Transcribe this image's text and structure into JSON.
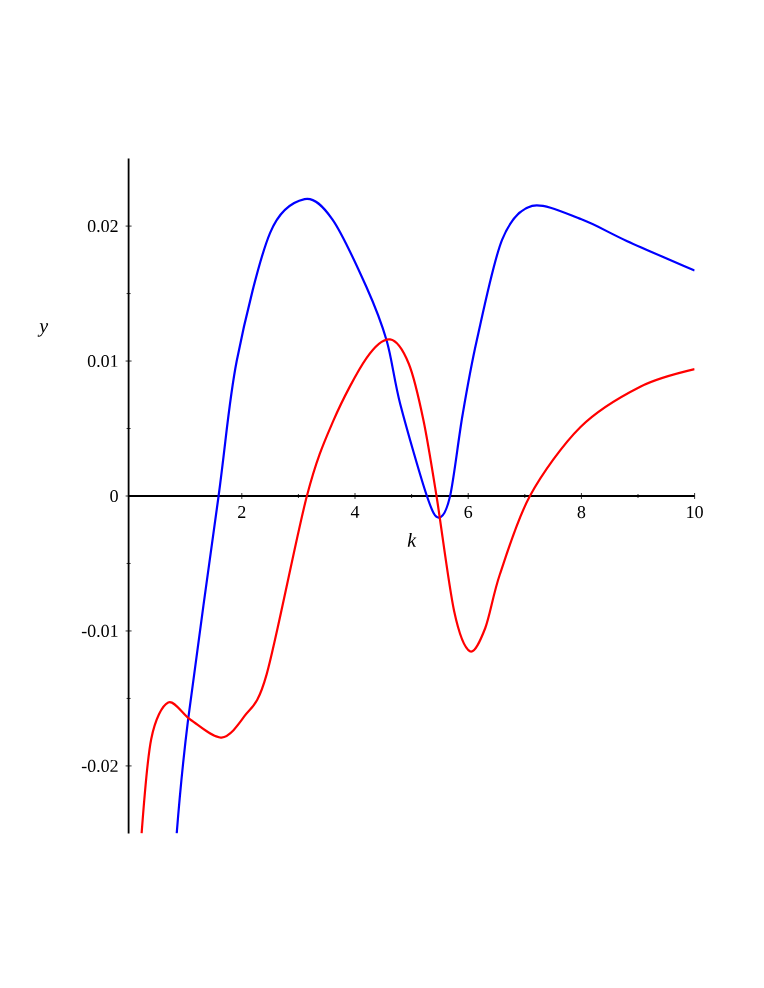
{
  "chart_data": {
    "type": "line",
    "xlabel": "k",
    "ylabel": "y",
    "xlim": [
      0,
      10
    ],
    "ylim": [
      -0.025,
      0.025
    ],
    "xticks": [
      2,
      4,
      6,
      8,
      10
    ],
    "yticks": [
      -0.02,
      -0.01,
      0,
      0.01,
      0.02
    ],
    "grid": false,
    "marker": "none",
    "line_style": "solid",
    "series": [
      {
        "color": "#0000ff",
        "x": [
          0.85,
          1.05,
          1.59,
          1.91,
          2.5,
          3.11,
          3.6,
          4.2,
          4.56,
          4.8,
          5.27,
          5.48,
          5.68,
          5.9,
          6.15,
          6.6,
          7.13,
          8.0,
          8.8,
          10
        ],
        "values": [
          -0.025,
          -0.0166,
          0,
          0.01,
          0.0195,
          0.022,
          0.0205,
          0.0155,
          0.0115,
          0.0068,
          0,
          -0.0016,
          0,
          0.006,
          0.0115,
          0.019,
          0.0215,
          0.0205,
          0.0189,
          0.0167
        ]
      },
      {
        "color": "#ff0000",
        "x": [
          0.23,
          0.4,
          0.7,
          1.1,
          1.64,
          2.05,
          2.44,
          3.15,
          3.62,
          4.2,
          4.62,
          4.95,
          5.21,
          5.44,
          5.75,
          6.03,
          6.3,
          6.56,
          7.09,
          7.98,
          9.04,
          10
        ],
        "values": [
          -0.025,
          -0.018,
          -0.0153,
          -0.0166,
          -0.0179,
          -0.0163,
          -0.0132,
          0,
          0.0056,
          0.0102,
          0.0116,
          0.0098,
          0.0056,
          0,
          -0.0085,
          -0.0115,
          -0.0098,
          -0.0058,
          0,
          0.0051,
          0.0081,
          0.0094
        ]
      }
    ]
  }
}
